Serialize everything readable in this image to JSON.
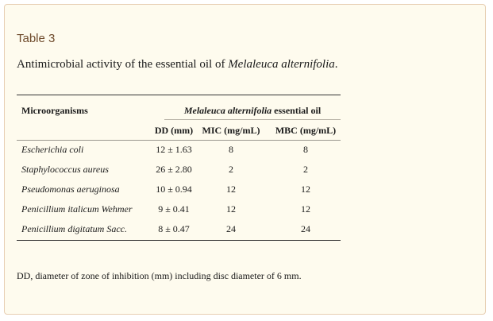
{
  "table_label": "Table 3",
  "caption": {
    "prefix": "Antimicrobial activity of the essential oil of ",
    "species": "Melaleuca alternifolia",
    "suffix": "."
  },
  "table": {
    "col_org": "Microorganisms",
    "group_species": "Melaleuca alternifolia",
    "group_suffix": " essential oil",
    "col_dd": "DD (mm)",
    "col_mic": "MIC (mg/mL)",
    "col_mbc": "MBC (mg/mL)",
    "rows": [
      {
        "organism": "Escherichia coli",
        "dd": "12 ± 1.63",
        "mic": "8",
        "mbc": "8"
      },
      {
        "organism": "Staphylococcus aureus",
        "dd": "26 ± 2.80",
        "mic": "2",
        "mbc": "2"
      },
      {
        "organism": "Pseudomonas aeruginosa",
        "dd": "10 ± 0.94",
        "mic": "12",
        "mbc": "12"
      },
      {
        "organism": "Penicillium italicum Wehmer",
        "dd": "9 ± 0.41",
        "mic": "12",
        "mbc": "12"
      },
      {
        "organism": "Penicillium digitatum Sacc.",
        "dd": "8 ± 0.47",
        "mic": "24",
        "mbc": "24"
      }
    ]
  },
  "footnote": "DD, diameter of zone of inhibition (mm) including disc diameter of 6 mm."
}
